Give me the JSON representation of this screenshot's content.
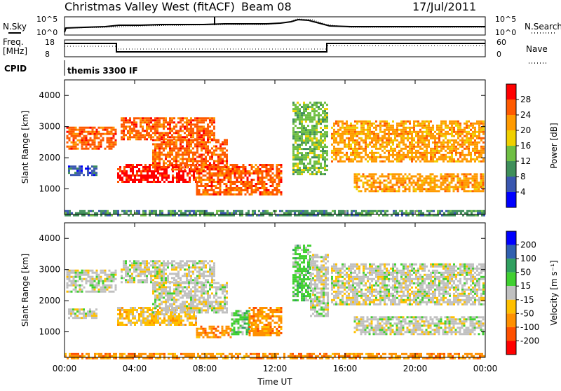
{
  "header": {
    "station": "Christmas Valley West (fitACF)",
    "beam": "Beam 08",
    "date": "17/Jul/2011"
  },
  "summary": {
    "nsky_label": "N.Sky",
    "nsearch_label": "N.Search",
    "freq_label_1": "Freq.",
    "freq_label_2": "[MHz]",
    "nave_label": "Nave",
    "cpid_label": "CPID",
    "left_ticks_top": [
      "10^5",
      "10^0"
    ],
    "right_ticks_top": [
      "10^5",
      "10^0"
    ],
    "left_ticks_freq": [
      "18",
      "8"
    ],
    "right_ticks_nave": [
      "60",
      "0"
    ],
    "cpid_text": "themis 3300 IF"
  },
  "colors": {
    "power": [
      "#0000ff",
      "#3a57b0",
      "#3f8f5a",
      "#6fbf44",
      "#f0d000",
      "#ff9a00",
      "#ff5a00",
      "#ff0000"
    ],
    "velocity": [
      "#ff0000",
      "#ff5000",
      "#ff9000",
      "#ffc000",
      "#c0c0c0",
      "#40d030",
      "#30a060",
      "#3060b0",
      "#0000ff"
    ]
  },
  "chart_data": [
    {
      "type": "heatmap",
      "panel": "power",
      "xlabel": "",
      "ylabel": "Slant Range [km]",
      "xlim": [
        0,
        24
      ],
      "ylim": [
        180,
        4500
      ],
      "yticks": [
        "1000",
        "2000",
        "3000",
        "4000"
      ],
      "colorbar_label": "Power [dB]",
      "colorbar_ticks": [
        "4",
        "8",
        "12",
        "16",
        "20",
        "24",
        "28"
      ],
      "echo_bands": [
        {
          "t0": 0.1,
          "t1": 2.9,
          "r0": 2300,
          "r1": 3000,
          "level": 6
        },
        {
          "t0": 0.2,
          "t1": 1.8,
          "r0": 1450,
          "r1": 1750,
          "level": 1
        },
        {
          "t0": 3.0,
          "t1": 7.5,
          "r0": 1200,
          "r1": 1800,
          "level": 7
        },
        {
          "t0": 3.2,
          "t1": 8.5,
          "r0": 2600,
          "r1": 3300,
          "level": 6
        },
        {
          "t0": 5.0,
          "t1": 9.3,
          "r0": 1600,
          "r1": 2600,
          "level": 6
        },
        {
          "t0": 7.5,
          "t1": 12.3,
          "r0": 800,
          "r1": 1800,
          "level": 6
        },
        {
          "t0": 13.0,
          "t1": 15.0,
          "r0": 1500,
          "r1": 3800,
          "level": 3
        },
        {
          "t0": 15.2,
          "t1": 23.9,
          "r0": 1900,
          "r1": 3200,
          "level": 5
        },
        {
          "t0": 16.5,
          "t1": 23.9,
          "r0": 900,
          "r1": 1500,
          "level": 5
        },
        {
          "t0": 0.0,
          "t1": 24.0,
          "r0": 180,
          "r1": 320,
          "level": 2
        }
      ]
    },
    {
      "type": "heatmap",
      "panel": "velocity",
      "xlabel": "Time UT",
      "ylabel": "Slant Range [km]",
      "xlim": [
        0,
        24
      ],
      "ylim": [
        180,
        4500
      ],
      "xticks": [
        "00:00",
        "04:00",
        "08:00",
        "12:00",
        "16:00",
        "20:00",
        "00:00"
      ],
      "yticks": [
        "1000",
        "2000",
        "3000",
        "4000"
      ],
      "colorbar_label": "Velocity [m s⁻¹]",
      "colorbar_ticks": [
        "200",
        "100",
        "50",
        "15",
        "-15",
        "-50",
        "-100",
        "-200"
      ],
      "echo_bands": [
        {
          "t0": 0.1,
          "t1": 2.9,
          "r0": 2300,
          "r1": 3000,
          "level": 4
        },
        {
          "t0": 0.2,
          "t1": 1.8,
          "r0": 1450,
          "r1": 1750,
          "level": 4
        },
        {
          "t0": 3.0,
          "t1": 7.5,
          "r0": 1200,
          "r1": 1800,
          "level": 3
        },
        {
          "t0": 3.2,
          "t1": 8.5,
          "r0": 2600,
          "r1": 3300,
          "level": 4
        },
        {
          "t0": 5.0,
          "t1": 9.3,
          "r0": 1600,
          "r1": 2600,
          "level": 4
        },
        {
          "t0": 7.5,
          "t1": 9.5,
          "r0": 800,
          "r1": 1200,
          "level": 2
        },
        {
          "t0": 9.5,
          "t1": 10.5,
          "r0": 900,
          "r1": 1700,
          "level": 5
        },
        {
          "t0": 10.5,
          "t1": 12.3,
          "r0": 900,
          "r1": 1800,
          "level": 2
        },
        {
          "t0": 13.0,
          "t1": 14.0,
          "r0": 2000,
          "r1": 3800,
          "level": 5
        },
        {
          "t0": 14.0,
          "t1": 15.0,
          "r0": 1500,
          "r1": 3500,
          "level": 4
        },
        {
          "t0": 15.2,
          "t1": 23.9,
          "r0": 1900,
          "r1": 3200,
          "level": 4
        },
        {
          "t0": 16.5,
          "t1": 23.9,
          "r0": 900,
          "r1": 1500,
          "level": 4
        },
        {
          "t0": 0.0,
          "t1": 24.0,
          "r0": 180,
          "r1": 320,
          "level": 2
        }
      ]
    }
  ]
}
